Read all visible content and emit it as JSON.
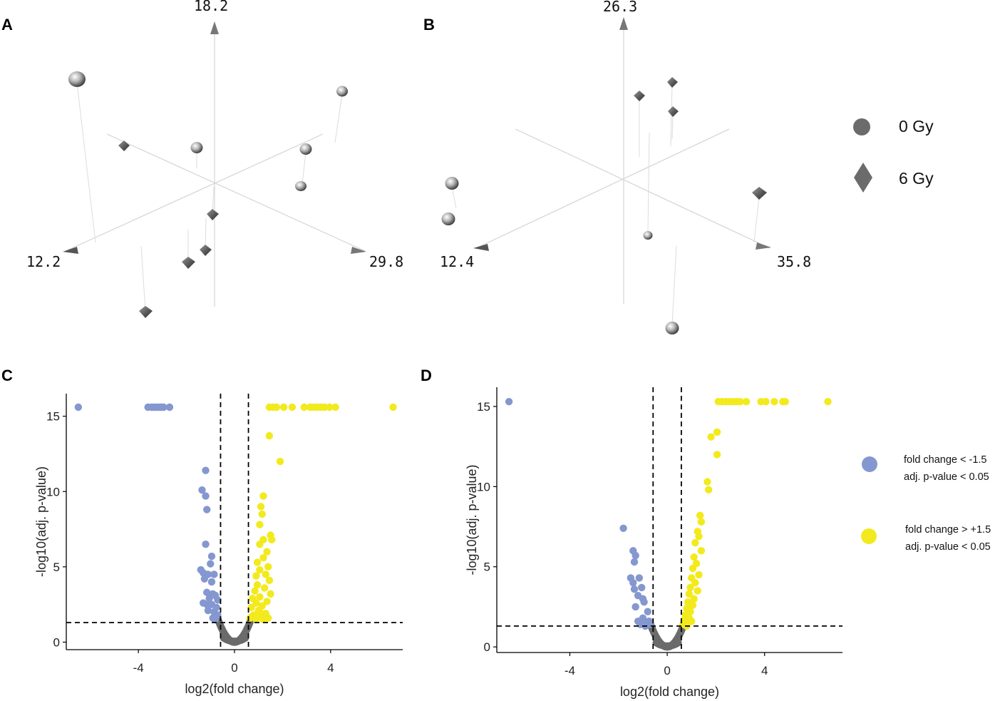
{
  "panels": {
    "A": {
      "label": "A",
      "axes": {
        "up": "18.2",
        "left": "12.2",
        "right": "29.8"
      }
    },
    "B": {
      "label": "B",
      "axes": {
        "up": "26.3",
        "left": "12.4",
        "right": "35.8"
      }
    },
    "C": {
      "label": "C"
    },
    "D": {
      "label": "D"
    }
  },
  "legend_top": {
    "items": [
      {
        "shape": "circle",
        "label": "0 Gy"
      },
      {
        "shape": "diamond",
        "label": "6 Gy"
      }
    ]
  },
  "legend_bottom": {
    "items": [
      {
        "color": "#8497cf",
        "line1": "fold change < -1.5",
        "line2": "adj. p-value < 0.05"
      },
      {
        "color": "#f2ea1d",
        "line1": "fold change > +1.5",
        "line2": "adj. p-value < 0.05"
      }
    ]
  },
  "colors": {
    "down": "#8497cf",
    "up": "#f2ea1d",
    "ns": "#6b6b6b",
    "axis": "#000000"
  },
  "chart_data": [
    {
      "type": "scatter",
      "panel": "C",
      "title": "",
      "xlabel": "log2(fold change)",
      "ylabel": "-log10(adj. p-value)",
      "xlim": [
        -7,
        7
      ],
      "ylim": [
        -0.5,
        16.5
      ],
      "xticks": [
        -4,
        0,
        4
      ],
      "xtick_labels": [
        "-4",
        "0",
        "4"
      ],
      "yticks": [
        0,
        5,
        10,
        15
      ],
      "ytick_labels": [
        "0",
        "5",
        "10",
        "15"
      ],
      "thresholds": {
        "x": [
          -0.58,
          0.58
        ],
        "y": 1.3
      },
      "series": [
        {
          "name": "fold change < -1.5, adj. p-value < 0.05",
          "color": "down",
          "points": [
            [
              -6.5,
              15.6
            ],
            [
              -3.6,
              15.6
            ],
            [
              -3.45,
              15.6
            ],
            [
              -3.35,
              15.6
            ],
            [
              -3.25,
              15.6
            ],
            [
              -3.15,
              15.6
            ],
            [
              -3.05,
              15.6
            ],
            [
              -2.95,
              15.6
            ],
            [
              -2.7,
              15.6
            ],
            [
              -1.2,
              11.4
            ],
            [
              -1.35,
              10.1
            ],
            [
              -1.2,
              9.7
            ],
            [
              -1.15,
              8.8
            ],
            [
              -1.2,
              6.5
            ],
            [
              -0.95,
              5.7
            ],
            [
              -1.0,
              5.2
            ],
            [
              -1.4,
              4.8
            ],
            [
              -1.3,
              4.6
            ],
            [
              -1.1,
              4.5
            ],
            [
              -0.85,
              4.5
            ],
            [
              -1.25,
              4.2
            ],
            [
              -0.95,
              4.0
            ],
            [
              -1.15,
              3.3
            ],
            [
              -0.9,
              3.2
            ],
            [
              -0.8,
              3.1
            ],
            [
              -1.05,
              2.9
            ],
            [
              -0.7,
              2.8
            ],
            [
              -1.3,
              2.6
            ],
            [
              -1.15,
              2.5
            ],
            [
              -0.95,
              2.5
            ],
            [
              -0.75,
              2.3
            ],
            [
              -1.1,
              2.1
            ],
            [
              -0.85,
              2.0
            ],
            [
              -0.7,
              1.8
            ],
            [
              -0.9,
              1.6
            ],
            [
              -0.8,
              1.5
            ]
          ]
        },
        {
          "name": "fold change > +1.5, adj. p-value < 0.05",
          "color": "up",
          "points": [
            [
              1.45,
              15.6
            ],
            [
              1.6,
              15.6
            ],
            [
              1.75,
              15.6
            ],
            [
              2.05,
              15.6
            ],
            [
              2.4,
              15.6
            ],
            [
              2.9,
              15.6
            ],
            [
              3.15,
              15.6
            ],
            [
              3.3,
              15.6
            ],
            [
              3.45,
              15.6
            ],
            [
              3.6,
              15.6
            ],
            [
              3.75,
              15.6
            ],
            [
              3.95,
              15.6
            ],
            [
              4.2,
              15.6
            ],
            [
              6.6,
              15.6
            ],
            [
              1.45,
              13.7
            ],
            [
              1.9,
              12.0
            ],
            [
              1.2,
              9.7
            ],
            [
              1.1,
              9.0
            ],
            [
              1.15,
              8.5
            ],
            [
              1.05,
              7.8
            ],
            [
              1.5,
              7.1
            ],
            [
              1.55,
              6.8
            ],
            [
              1.2,
              6.8
            ],
            [
              1.05,
              6.5
            ],
            [
              1.35,
              6.0
            ],
            [
              1.2,
              5.6
            ],
            [
              0.95,
              5.3
            ],
            [
              1.4,
              5.0
            ],
            [
              1.05,
              4.8
            ],
            [
              1.3,
              4.5
            ],
            [
              0.9,
              4.4
            ],
            [
              1.45,
              4.1
            ],
            [
              0.95,
              3.8
            ],
            [
              1.25,
              3.6
            ],
            [
              0.85,
              3.4
            ],
            [
              1.5,
              3.2
            ],
            [
              1.05,
              3.0
            ],
            [
              0.75,
              2.9
            ],
            [
              1.35,
              2.7
            ],
            [
              0.9,
              2.6
            ],
            [
              1.15,
              2.4
            ],
            [
              0.7,
              2.3
            ],
            [
              1.0,
              2.1
            ],
            [
              1.3,
              1.9
            ],
            [
              0.8,
              1.8
            ],
            [
              1.1,
              1.7
            ],
            [
              0.65,
              1.6
            ],
            [
              1.2,
              1.5
            ],
            [
              0.9,
              1.5
            ],
            [
              1.4,
              1.6
            ],
            [
              1.05,
              2.0
            ]
          ]
        }
      ],
      "ns_curve": {
        "a": 3.2,
        "xmax": 0.72,
        "ymin": 0.0
      }
    },
    {
      "type": "scatter",
      "panel": "D",
      "title": "",
      "xlabel": "log2(fold change)",
      "ylabel": "-log10(adj. p-value)",
      "xlim": [
        -7,
        7.2
      ],
      "ylim": [
        -0.35,
        16.2
      ],
      "xticks": [
        -4,
        0,
        4
      ],
      "xtick_labels": [
        "-4",
        "0",
        "4"
      ],
      "yticks": [
        0,
        5,
        10,
        15
      ],
      "ytick_labels": [
        "0",
        "5",
        "10",
        "15"
      ],
      "thresholds": {
        "x": [
          -0.58,
          0.58
        ],
        "y": 1.3
      },
      "series": [
        {
          "name": "fold change < -1.5, adj. p-value < 0.05",
          "color": "down",
          "points": [
            [
              -6.5,
              15.3
            ],
            [
              -1.8,
              7.4
            ],
            [
              -1.4,
              6.0
            ],
            [
              -1.3,
              5.7
            ],
            [
              -1.35,
              5.3
            ],
            [
              -1.5,
              4.3
            ],
            [
              -1.15,
              4.3
            ],
            [
              -1.4,
              4.0
            ],
            [
              -1.05,
              3.7
            ],
            [
              -1.35,
              3.6
            ],
            [
              -1.2,
              3.2
            ],
            [
              -1.0,
              3.0
            ],
            [
              -0.95,
              2.8
            ],
            [
              -1.3,
              2.5
            ],
            [
              -0.8,
              2.2
            ],
            [
              -1.0,
              1.8
            ],
            [
              -1.2,
              1.6
            ],
            [
              -0.85,
              1.5
            ],
            [
              -0.7,
              1.4
            ],
            [
              -1.1,
              1.4
            ],
            [
              -0.9,
              1.3
            ],
            [
              -0.75,
              1.6
            ]
          ]
        },
        {
          "name": "fold change > +1.5, adj. p-value < 0.05",
          "color": "up",
          "points": [
            [
              2.1,
              15.3
            ],
            [
              2.25,
              15.3
            ],
            [
              2.4,
              15.3
            ],
            [
              2.55,
              15.3
            ],
            [
              2.7,
              15.3
            ],
            [
              2.85,
              15.3
            ],
            [
              3.0,
              15.3
            ],
            [
              3.25,
              15.3
            ],
            [
              3.85,
              15.3
            ],
            [
              4.05,
              15.3
            ],
            [
              4.4,
              15.3
            ],
            [
              4.75,
              15.3
            ],
            [
              4.85,
              15.3
            ],
            [
              6.6,
              15.3
            ],
            [
              2.05,
              13.4
            ],
            [
              1.8,
              13.1
            ],
            [
              2.05,
              12.0
            ],
            [
              1.65,
              10.3
            ],
            [
              1.7,
              9.8
            ],
            [
              1.35,
              8.2
            ],
            [
              1.4,
              7.8
            ],
            [
              1.25,
              7.2
            ],
            [
              1.3,
              6.9
            ],
            [
              1.15,
              6.5
            ],
            [
              1.4,
              6.0
            ],
            [
              1.1,
              5.6
            ],
            [
              1.2,
              5.2
            ],
            [
              1.05,
              4.9
            ],
            [
              1.3,
              4.5
            ],
            [
              1.0,
              4.3
            ],
            [
              1.15,
              4.0
            ],
            [
              0.95,
              3.7
            ],
            [
              1.25,
              3.5
            ],
            [
              0.9,
              3.3
            ],
            [
              1.1,
              3.0
            ],
            [
              0.85,
              2.8
            ],
            [
              1.05,
              2.6
            ],
            [
              0.8,
              2.4
            ],
            [
              0.95,
              2.2
            ],
            [
              0.75,
              2.0
            ],
            [
              0.9,
              1.8
            ],
            [
              0.7,
              1.7
            ],
            [
              0.85,
              1.5
            ],
            [
              0.65,
              1.4
            ],
            [
              1.0,
              1.6
            ],
            [
              0.8,
              1.3
            ]
          ]
        }
      ],
      "ns_curve": {
        "a": 3.0,
        "xmax": 0.72,
        "ymin": 0.0
      }
    }
  ]
}
